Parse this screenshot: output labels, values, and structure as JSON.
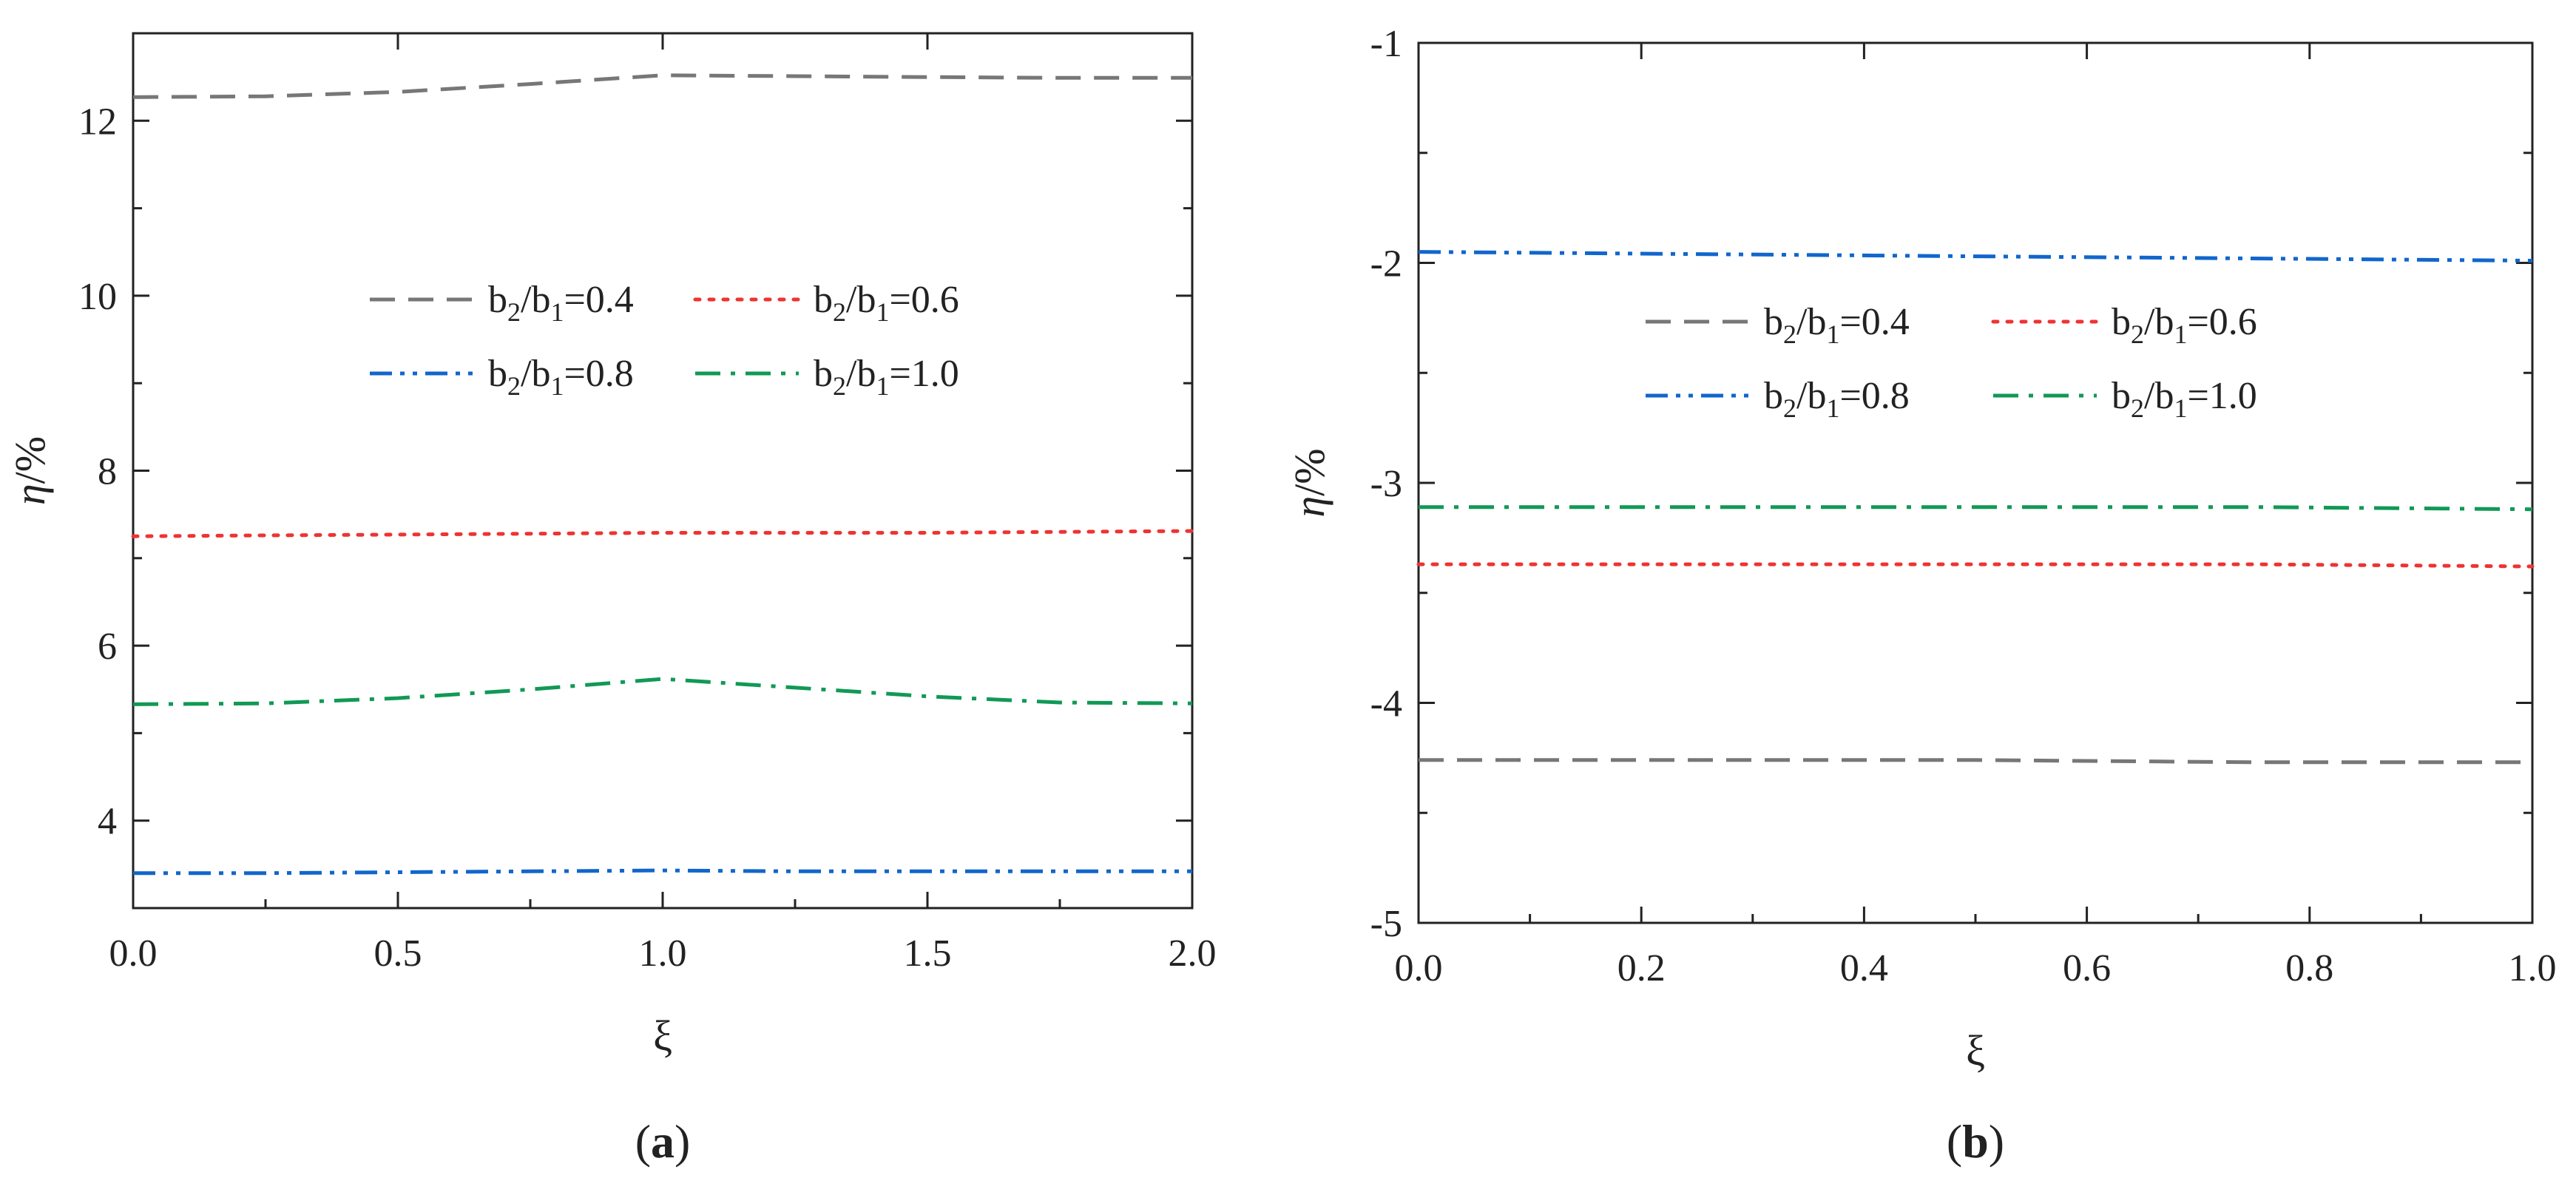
{
  "chart_data": [
    {
      "type": "line",
      "panel": "a",
      "panel_label": "a",
      "xlabel": "ξ",
      "ylabel_main": "η",
      "ylabel_unit": "/%",
      "xlim": [
        0,
        2
      ],
      "ylim": [
        3,
        13
      ],
      "xticks": [
        0,
        0.5,
        1,
        1.5,
        2
      ],
      "xtick_labels": [
        "0.0",
        "0.5",
        "1.0",
        "1.5",
        "2.0"
      ],
      "yticks": [
        4,
        6,
        8,
        10,
        12
      ],
      "ytick_labels": [
        "4",
        "6",
        "8",
        "10",
        "12"
      ],
      "legend_position": "upper-middle",
      "x": [
        0,
        0.25,
        0.5,
        0.75,
        1,
        1.25,
        1.5,
        1.75,
        2
      ],
      "series": [
        {
          "name": "b2/b1=0.4",
          "ratio": "0.4",
          "color": "#777777",
          "style": "dash",
          "values": [
            12.27,
            12.28,
            12.33,
            12.42,
            12.52,
            12.51,
            12.5,
            12.49,
            12.49
          ]
        },
        {
          "name": "b2/b1=0.6",
          "ratio": "0.6",
          "color": "#ee3333",
          "style": "dot",
          "values": [
            7.25,
            7.26,
            7.27,
            7.28,
            7.29,
            7.29,
            7.29,
            7.3,
            7.31
          ]
        },
        {
          "name": "b2/b1=0.8",
          "ratio": "0.8",
          "color": "#1166cc",
          "style": "dashdotdot",
          "values": [
            3.4,
            3.4,
            3.41,
            3.42,
            3.43,
            3.42,
            3.42,
            3.42,
            3.42
          ]
        },
        {
          "name": "b2/b1=1.0",
          "ratio": "1.0",
          "color": "#119955",
          "style": "dashdot",
          "values": [
            5.33,
            5.34,
            5.4,
            5.5,
            5.62,
            5.52,
            5.42,
            5.35,
            5.34
          ]
        }
      ]
    },
    {
      "type": "line",
      "panel": "b",
      "panel_label": "b",
      "xlabel": "ξ",
      "ylabel_main": "η",
      "ylabel_unit": "/%",
      "xlim": [
        0,
        1
      ],
      "ylim": [
        -5,
        -1
      ],
      "xticks": [
        0,
        0.2,
        0.4,
        0.6,
        0.8,
        1
      ],
      "xtick_labels": [
        "0.0",
        "0.2",
        "0.4",
        "0.6",
        "0.8",
        "1.0"
      ],
      "yticks": [
        -5,
        -4,
        -3,
        -2,
        -1
      ],
      "ytick_labels": [
        "-5",
        "-4",
        "-3",
        "-2",
        "-1"
      ],
      "legend_position": "upper-middle",
      "x": [
        0,
        0.25,
        0.5,
        0.75,
        1
      ],
      "series": [
        {
          "name": "b2/b1=0.4",
          "ratio": "0.4",
          "color": "#777777",
          "style": "dash",
          "values": [
            -4.26,
            -4.26,
            -4.26,
            -4.27,
            -4.27
          ]
        },
        {
          "name": "b2/b1=0.6",
          "ratio": "0.6",
          "color": "#ee3333",
          "style": "dot",
          "values": [
            -3.37,
            -3.37,
            -3.37,
            -3.37,
            -3.38
          ]
        },
        {
          "name": "b2/b1=0.8",
          "ratio": "0.8",
          "color": "#1166cc",
          "style": "dashdotdot",
          "values": [
            -1.95,
            -1.96,
            -1.97,
            -1.98,
            -1.99
          ]
        },
        {
          "name": "b2/b1=1.0",
          "ratio": "1.0",
          "color": "#119955",
          "style": "dashdot",
          "values": [
            -3.11,
            -3.11,
            -3.11,
            -3.11,
            -3.12
          ]
        }
      ]
    }
  ]
}
